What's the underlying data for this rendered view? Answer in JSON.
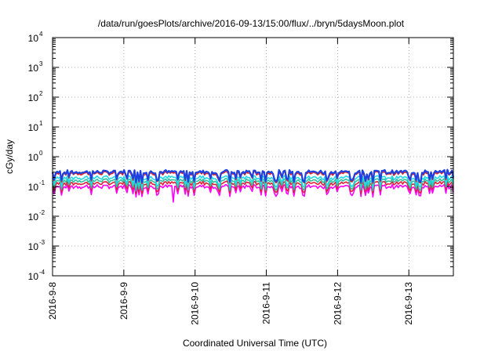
{
  "chart_data": {
    "type": "line",
    "title": "/data/run/goesPlots/archive/2016-09-13/15:00/flux/../bryn/5daysMoon.plot",
    "xlabel": "Coordinated Universal Time (UTC)",
    "ylabel": "cGy/day",
    "y_scale": "log",
    "ylim": [
      0.0001,
      10000
    ],
    "y_ticks": [
      {
        "base": "10",
        "exp": "-4",
        "value": 0.0001
      },
      {
        "base": "10",
        "exp": "-3",
        "value": 0.001
      },
      {
        "base": "10",
        "exp": "-2",
        "value": 0.01
      },
      {
        "base": "10",
        "exp": "-1",
        "value": 0.1
      },
      {
        "base": "10",
        "exp": "0",
        "value": 1
      },
      {
        "base": "10",
        "exp": "1",
        "value": 10
      },
      {
        "base": "10",
        "exp": "2",
        "value": 100
      },
      {
        "base": "10",
        "exp": "3",
        "value": 1000
      },
      {
        "base": "10",
        "exp": "4",
        "value": 10000
      }
    ],
    "x_range": [
      "2016-09-08T00:00",
      "2016-09-13T15:00"
    ],
    "x_ticks": [
      "2016-9-8",
      "2016-9-9",
      "2016-9-10",
      "2016-9-11",
      "2016-9-12",
      "2016-9-13"
    ],
    "grid": true,
    "series": [
      {
        "color": "#ff00ff",
        "base": 0.1,
        "dip": 0.07,
        "spike": 0.03,
        "values": []
      },
      {
        "color": "#e0203a",
        "base": 0.13,
        "dip": 0.09,
        "values": []
      },
      {
        "color": "#30c0a0",
        "base": 0.16,
        "dip": 0.11,
        "values": []
      },
      {
        "color": "#20d8e8",
        "base": 0.2,
        "dip": 0.13,
        "values": []
      },
      {
        "color": "#e02020",
        "base": 0.29,
        "dip": 0.17,
        "values": []
      },
      {
        "color": "#2040e0",
        "base": 0.31,
        "dip": 0.16,
        "values": []
      }
    ],
    "series_approx_description": "Six flat series near 0.1–0.3 cGy/day with periodic dips; magenta series dips to ~0.03 near 2016-9-9 16:00."
  }
}
